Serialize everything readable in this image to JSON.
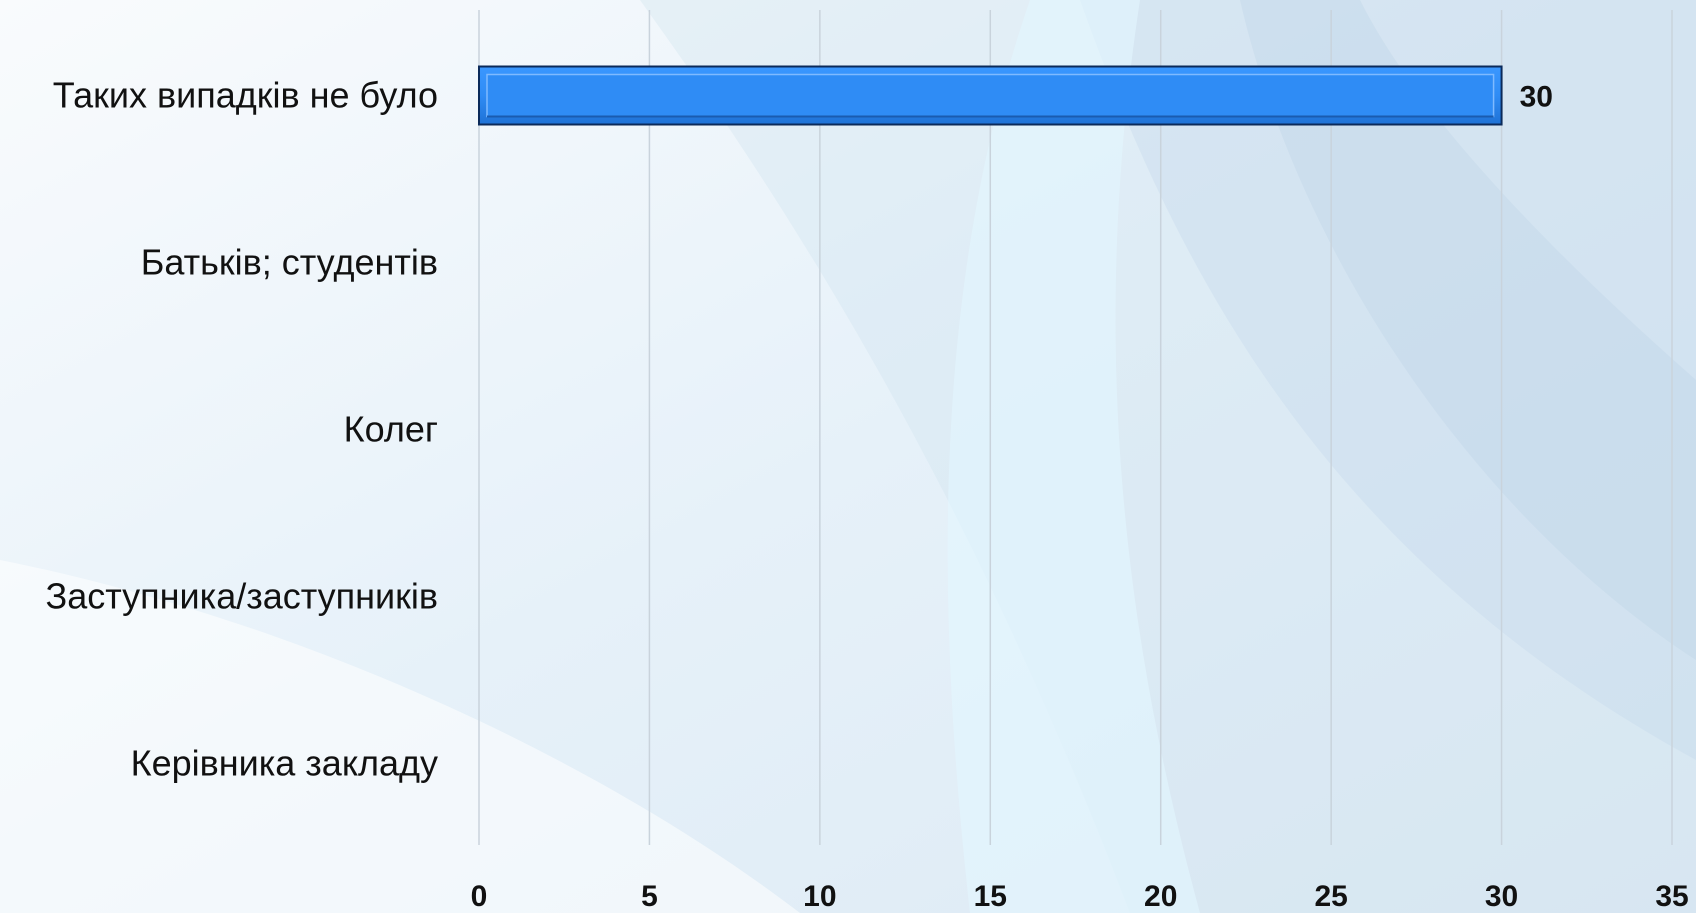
{
  "colors": {
    "bar_fill": "#2f8cf5",
    "bar_stroke": "#0b2a5a",
    "grid": "#c9d3dc"
  },
  "chart_data": {
    "type": "bar",
    "orientation": "horizontal",
    "categories": [
      "Таких випадків не було",
      "Батьків; студентів",
      "Колег",
      "Заступника/заступників",
      "Керівника закладу"
    ],
    "values": [
      30,
      0,
      0,
      0,
      0
    ],
    "data_labels": [
      "30",
      "",
      "",
      "",
      ""
    ],
    "xlim": [
      0,
      35
    ],
    "xticks": [
      0,
      5,
      10,
      15,
      20,
      25,
      30,
      35
    ],
    "xtick_labels": [
      "0",
      "5",
      "10",
      "15",
      "20",
      "25",
      "30",
      "35"
    ],
    "title": "",
    "xlabel": "",
    "ylabel": "",
    "grid": "vertical",
    "legend": "none"
  }
}
